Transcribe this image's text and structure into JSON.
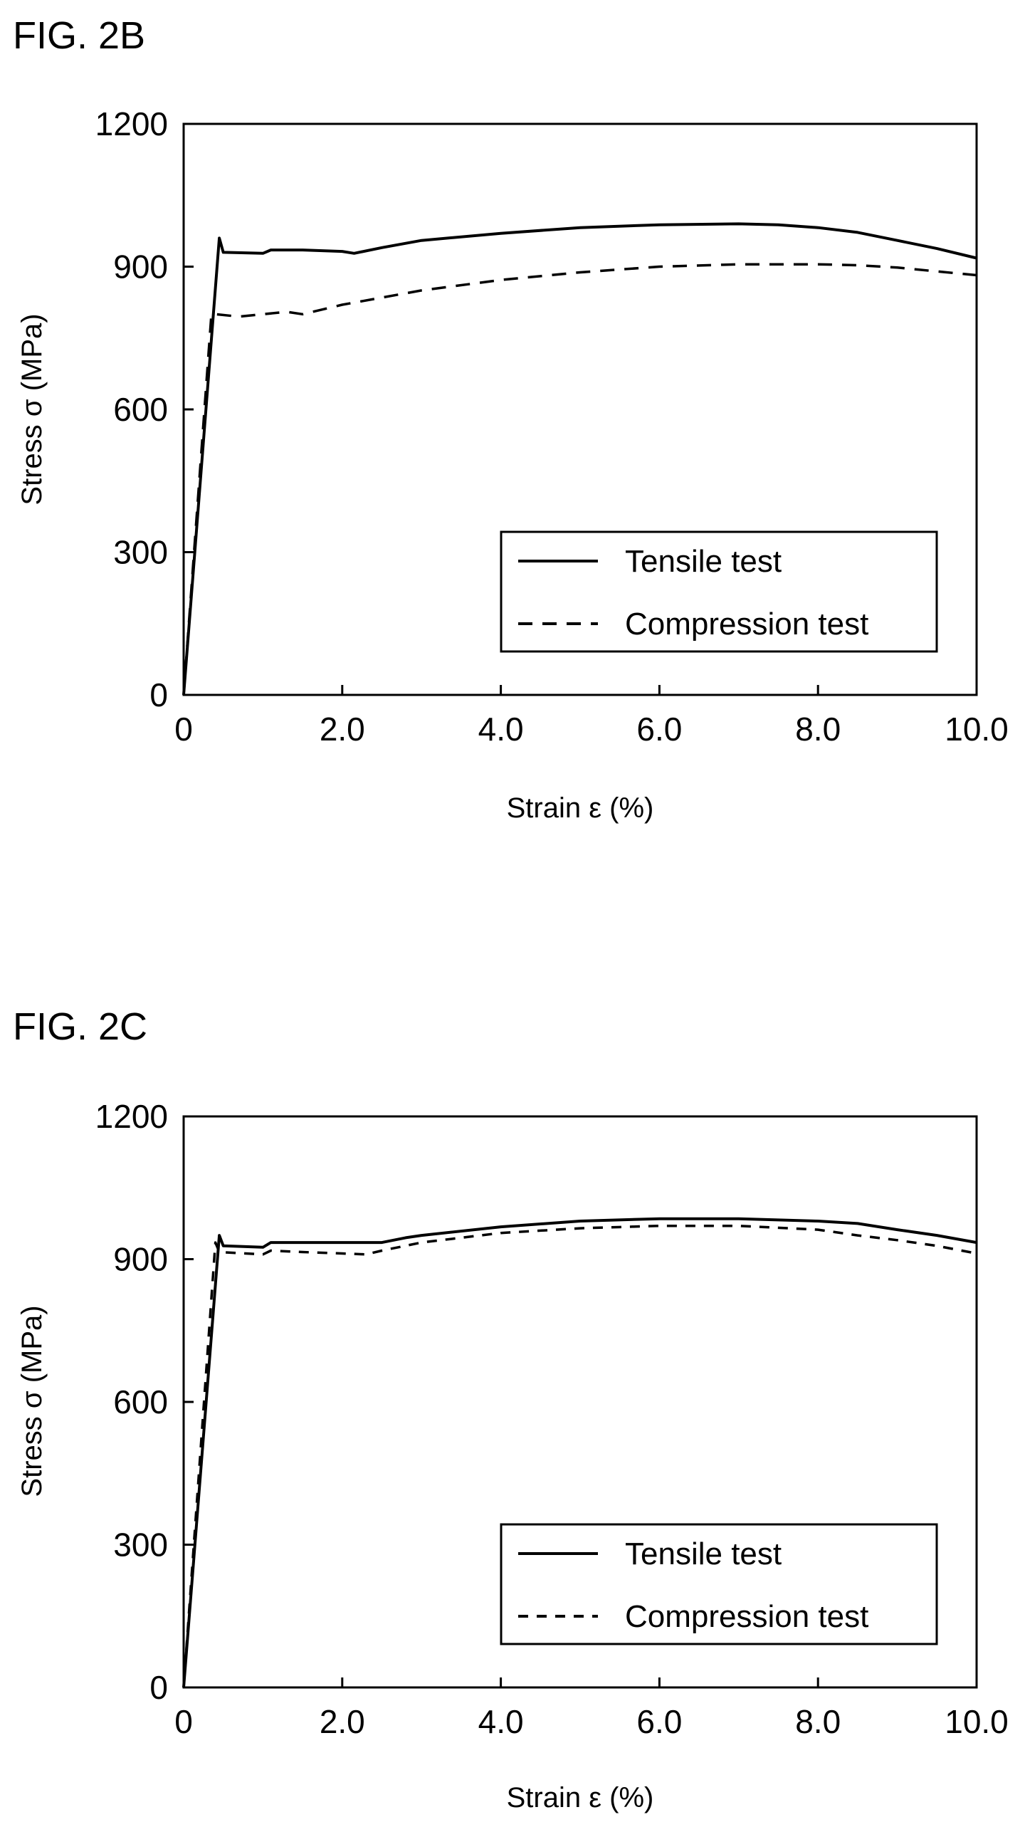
{
  "chart_data": [
    {
      "type": "line",
      "title": "FIG. 2B",
      "xlabel": "Strain  ε  (%)",
      "ylabel": "Stress  σ  (MPa)",
      "xlim": [
        0,
        10
      ],
      "ylim": [
        0,
        1200
      ],
      "xticks": [
        "0",
        "2.0",
        "4.0",
        "6.0",
        "8.0",
        "10.0"
      ],
      "yticks": [
        "0",
        "300",
        "600",
        "900",
        "1200"
      ],
      "grid": false,
      "legend_position": "bottom-right",
      "series": [
        {
          "name": "Tensile test",
          "line_style": "solid",
          "x": [
            0,
            0.45,
            0.5,
            1.0,
            1.1,
            1.5,
            2.0,
            2.15,
            2.5,
            3.0,
            4.0,
            5.0,
            6.0,
            7.0,
            7.5,
            8.0,
            8.5,
            9.0,
            9.5,
            10.0
          ],
          "y": [
            0,
            960,
            930,
            928,
            935,
            935,
            932,
            928,
            940,
            955,
            970,
            982,
            988,
            990,
            988,
            982,
            972,
            955,
            938,
            918
          ]
        },
        {
          "name": "Compression test",
          "line_style": "dashed",
          "x": [
            0,
            0.35,
            0.4,
            0.7,
            1.0,
            1.3,
            1.5,
            2.0,
            3.0,
            4.0,
            5.0,
            6.0,
            7.0,
            8.0,
            8.5,
            9.0,
            9.5,
            10.0
          ],
          "y": [
            0,
            800,
            800,
            795,
            800,
            805,
            800,
            820,
            850,
            872,
            888,
            900,
            905,
            905,
            903,
            898,
            890,
            882
          ]
        }
      ]
    },
    {
      "type": "line",
      "title": "FIG. 2C",
      "xlabel": "Strain  ε  (%)",
      "ylabel": "Stress  σ  (MPa)",
      "xlim": [
        0,
        10
      ],
      "ylim": [
        0,
        1200
      ],
      "xticks": [
        "0",
        "2.0",
        "4.0",
        "6.0",
        "8.0",
        "10.0"
      ],
      "yticks": [
        "0",
        "300",
        "600",
        "900",
        "1200"
      ],
      "grid": false,
      "legend_position": "bottom-right",
      "series": [
        {
          "name": "Tensile test",
          "line_style": "solid",
          "x": [
            0,
            0.45,
            0.5,
            1.0,
            1.1,
            1.5,
            2.0,
            2.5,
            2.8,
            3.0,
            4.0,
            5.0,
            6.0,
            7.0,
            8.0,
            8.5,
            9.0,
            9.5,
            10.0
          ],
          "y": [
            0,
            950,
            928,
            925,
            935,
            935,
            935,
            935,
            945,
            950,
            968,
            980,
            985,
            985,
            980,
            975,
            962,
            950,
            935
          ]
        },
        {
          "name": "Compression test",
          "line_style": "dashed",
          "x": [
            0,
            0.4,
            0.45,
            1.0,
            1.1,
            1.5,
            2.0,
            2.3,
            2.5,
            3.0,
            4.0,
            5.0,
            6.0,
            7.0,
            8.0,
            8.5,
            9.0,
            9.5,
            10.0
          ],
          "y": [
            0,
            935,
            915,
            910,
            918,
            915,
            912,
            910,
            918,
            935,
            955,
            965,
            970,
            970,
            962,
            950,
            940,
            928,
            912
          ]
        }
      ]
    }
  ]
}
